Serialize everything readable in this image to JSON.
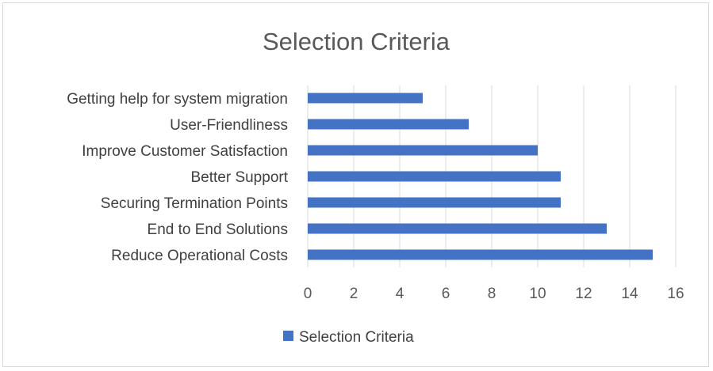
{
  "chart_data": {
    "type": "bar",
    "orientation": "horizontal",
    "title": "Selection Criteria",
    "xlabel": "",
    "ylabel": "",
    "categories": [
      "Getting help for system migration",
      "User-Friendliness",
      "Improve Customer Satisfaction",
      "Better Support",
      "Securing Termination Points",
      "End to End Solutions",
      "Reduce Operational Costs"
    ],
    "series": [
      {
        "name": "Selection Criteria",
        "values": [
          5,
          7,
          10,
          11,
          11,
          13,
          15
        ],
        "color": "#4472c4"
      }
    ],
    "xlim": [
      0,
      16
    ],
    "xticks": [
      "0",
      "2",
      "4",
      "6",
      "8",
      "10",
      "12",
      "14",
      "16"
    ],
    "grid": "vertical",
    "legend_position": "bottom"
  }
}
